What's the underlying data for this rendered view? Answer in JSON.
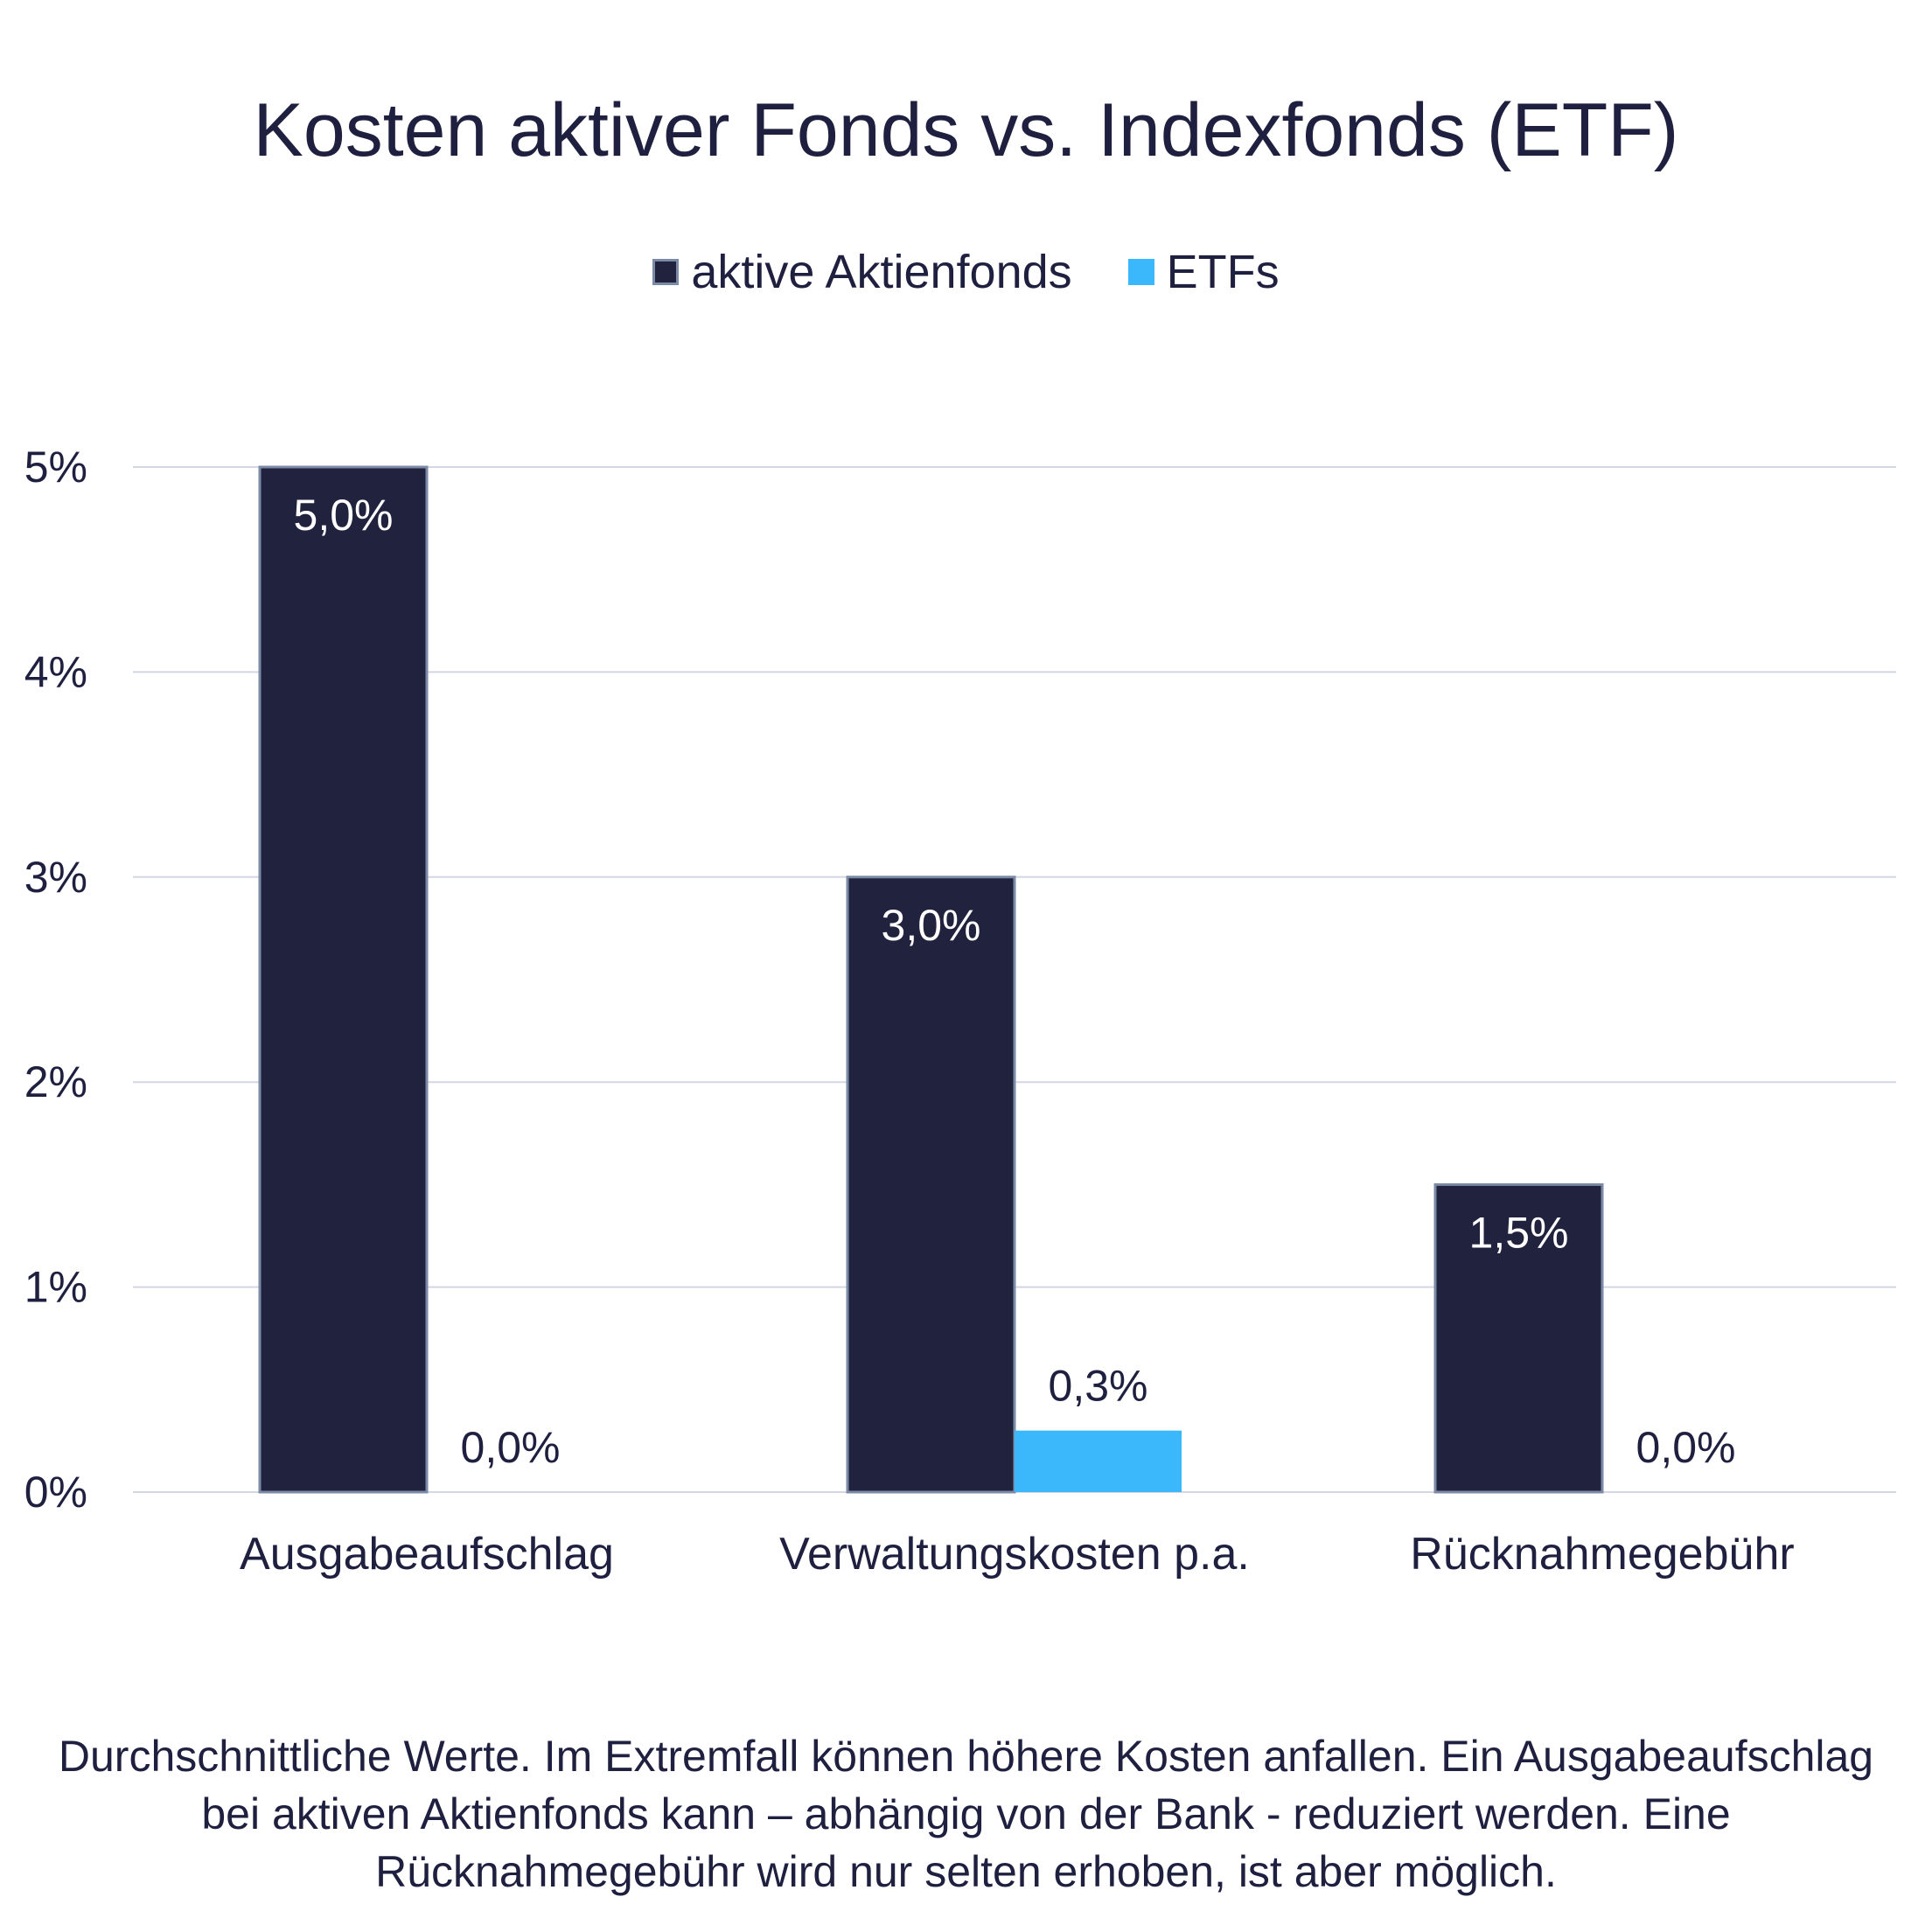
{
  "chart_data": {
    "type": "bar",
    "title": "Kosten aktiver Fonds vs. Indexfonds (ETF)",
    "xlabel": "",
    "ylabel": "",
    "categories": [
      "Ausgabeaufschlag",
      "Verwaltungskosten p.a.",
      "Rücknahmegebühr"
    ],
    "series": [
      {
        "name": "aktive Aktienfonds",
        "color": "#21223e",
        "values": [
          5.0,
          3.0,
          1.5
        ],
        "labels": [
          "5,0%",
          "3,0%",
          "1,5%"
        ]
      },
      {
        "name": "ETFs",
        "color": "#3ab8fb",
        "values": [
          0.0,
          0.3,
          0.0
        ],
        "labels": [
          "0,0%",
          "0,3%",
          "0,0%"
        ]
      }
    ],
    "ylim": [
      0,
      5
    ],
    "yticks": [
      0,
      1,
      2,
      3,
      4,
      5
    ],
    "ytick_labels": [
      "0%",
      "1%",
      "2%",
      "3%",
      "4%",
      "5%"
    ],
    "grid": true,
    "legend_position": "top-center"
  },
  "footnote": "Durchschnittliche Werte. Im Extremfall können höhere Kosten anfallen. Ein Ausgabeaufschlag bei aktiven Aktienfonds kann – abhängig von der Bank - reduziert werden. Eine Rücknahmegebühr wird nur selten erhoben, ist aber möglich."
}
